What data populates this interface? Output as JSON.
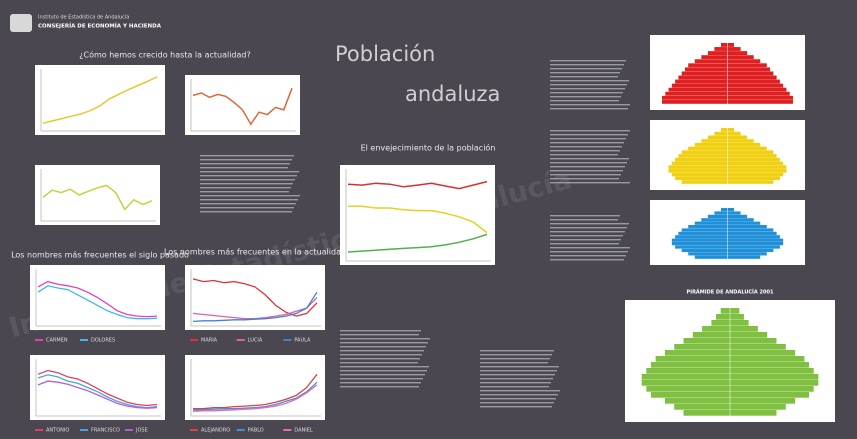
{
  "header": {
    "institute": "Instituto de Estadística de Andalucía",
    "department": "CONSEJERÍA DE ECONOMÍA Y HACIENDA"
  },
  "title": {
    "line1": "Población",
    "line2": "andaluza"
  },
  "watermark": "Instituto de Estadística de Andalucía",
  "growth": {
    "title": "¿Cómo hemos crecido hasta la actualidad?",
    "charts": [
      {
        "color": "#e8c830",
        "ylim": [
          0,
          100
        ],
        "values": [
          10,
          14,
          18,
          22,
          26,
          32,
          40,
          52,
          60,
          68,
          75,
          82,
          90
        ]
      },
      {
        "color": "#d8683a",
        "ylim": [
          0,
          100
        ],
        "values": [
          70,
          75,
          66,
          72,
          68,
          55,
          40,
          10,
          35,
          30,
          45,
          40,
          85
        ]
      },
      {
        "color": "#c8d040",
        "ylim": [
          0,
          100
        ],
        "values": [
          45,
          60,
          55,
          62,
          50,
          58,
          65,
          70,
          55,
          20,
          40,
          30,
          38
        ]
      }
    ]
  },
  "aging": {
    "title": "El envejecimiento de la población",
    "ylim": [
      0,
      100
    ],
    "series": [
      {
        "color": "#d83030",
        "values": [
          85,
          84,
          86,
          85,
          82,
          84,
          86,
          83,
          80,
          84,
          88
        ]
      },
      {
        "color": "#e8d020",
        "values": [
          60,
          60,
          58,
          58,
          56,
          55,
          55,
          52,
          48,
          42,
          30
        ]
      },
      {
        "color": "#50b050",
        "values": [
          8,
          9,
          10,
          11,
          12,
          13,
          14,
          16,
          19,
          23,
          28
        ]
      }
    ]
  },
  "names_past": {
    "title": "Los nombres más frecuentes el siglo pasado",
    "charts": [
      {
        "ylim": [
          0,
          100
        ],
        "series": [
          {
            "name": "CARMEN",
            "color": "#e040c0",
            "values": [
              70,
              80,
              75,
              72,
              68,
              60,
              50,
              38,
              25,
              18,
              15,
              14,
              15
            ]
          },
          {
            "name": "DOLORES",
            "color": "#40b8e8",
            "values": [
              60,
              72,
              68,
              65,
              55,
              45,
              35,
              25,
              18,
              12,
              10,
              10,
              11
            ]
          }
        ]
      },
      {
        "ylim": [
          0,
          100
        ],
        "series": [
          {
            "name": "ANTONIO",
            "color": "#e04060",
            "values": [
              75,
              82,
              78,
              70,
              66,
              58,
              48,
              38,
              30,
              22,
              18,
              16,
              18
            ]
          },
          {
            "name": "FRANCISCO",
            "color": "#40a8e0",
            "values": [
              68,
              74,
              70,
              62,
              58,
              50,
              42,
              32,
              24,
              18,
              14,
              12,
              14
            ]
          },
          {
            "name": "JOSE",
            "color": "#b060d0",
            "values": [
              55,
              62,
              60,
              56,
              50,
              44,
              36,
              28,
              20,
              15,
              12,
              11,
              12
            ]
          }
        ]
      }
    ]
  },
  "names_now": {
    "title": "Los nombres más frecuentes en la actualidad",
    "charts": [
      {
        "ylim": [
          0,
          100
        ],
        "series": [
          {
            "name": "MARIA",
            "color": "#e03030",
            "values": [
              85,
              80,
              82,
              78,
              80,
              76,
              70,
              55,
              35,
              22,
              15,
              20,
              40
            ]
          },
          {
            "name": "LUCIA",
            "color": "#e060a0",
            "values": [
              20,
              18,
              16,
              14,
              12,
              10,
              10,
              12,
              15,
              18,
              24,
              30,
              50
            ]
          },
          {
            "name": "PAULA",
            "color": "#4080e0",
            "values": [
              5,
              6,
              6,
              7,
              8,
              8,
              9,
              10,
              12,
              15,
              20,
              30,
              60
            ]
          }
        ]
      },
      {
        "ylim": [
          0,
          100
        ],
        "series": [
          {
            "name": "ALEJANDRO",
            "color": "#e04040",
            "values": [
              10,
              10,
              12,
              12,
              14,
              15,
              16,
              18,
              22,
              28,
              35,
              50,
              75
            ]
          },
          {
            "name": "PABLO",
            "color": "#4090e0",
            "values": [
              8,
              8,
              9,
              10,
              10,
              11,
              12,
              14,
              18,
              24,
              30,
              42,
              60
            ]
          },
          {
            "name": "DANIEL",
            "color": "#e070b0",
            "values": [
              5,
              6,
              6,
              7,
              8,
              9,
              10,
              12,
              15,
              20,
              28,
              40,
              55
            ]
          }
        ]
      }
    ]
  },
  "pyramids": [
    {
      "color": "#e02020",
      "xlim": [
        0,
        10
      ],
      "values": [
        10,
        10,
        9.5,
        9,
        8.5,
        8,
        7.5,
        7,
        6.5,
        6,
        5,
        4,
        3,
        2,
        1
      ]
    },
    {
      "color": "#f0d010",
      "xlim": [
        0,
        10
      ],
      "values": [
        7,
        8,
        8.5,
        9,
        9,
        8.5,
        8,
        7.5,
        7,
        6,
        5,
        4,
        3,
        2,
        1
      ]
    },
    {
      "color": "#2090d8",
      "xlim": [
        0,
        10
      ],
      "values": [
        5,
        6,
        7,
        8,
        8.5,
        8.5,
        8,
        7.5,
        7,
        6,
        5,
        4,
        3,
        2,
        1
      ]
    }
  ],
  "projection": {
    "title": "PIRÁMIDE DE ANDALUCÍA 2001",
    "color": "#80c040",
    "xlim": [
      0,
      10
    ],
    "values": [
      5,
      6,
      7,
      8.5,
      9,
      9.5,
      9.5,
      9,
      8.5,
      8,
      7,
      6,
      5,
      4,
      3,
      2,
      1.5,
      1
    ]
  }
}
